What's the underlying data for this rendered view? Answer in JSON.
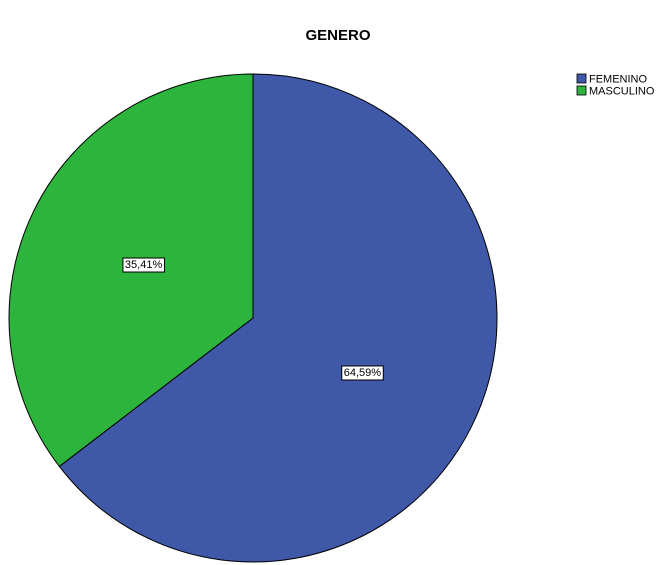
{
  "chart_data": {
    "type": "pie",
    "title": "GENERO",
    "slices": [
      {
        "name": "FEMENINO",
        "value": 64.59,
        "label": "64,59%",
        "color": "#3f58a8"
      },
      {
        "name": "MASCULINO",
        "value": 35.41,
        "label": "35,41%",
        "color": "#2db43d"
      }
    ],
    "start_angle_deg": 0,
    "direction": "clockwise",
    "legend_position": "top-right",
    "stroke_color": "#000000"
  }
}
